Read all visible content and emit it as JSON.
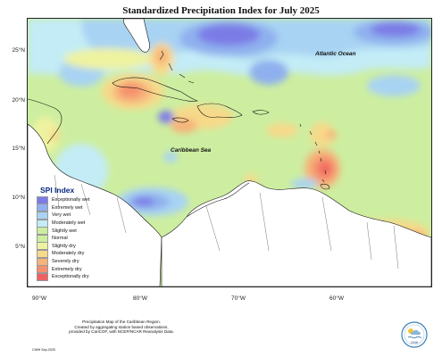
{
  "title": "Standardized Precipitation Index for July 2025",
  "latitude_labels": [
    "25°N",
    "20°N",
    "15°N",
    "10°N",
    "5°N"
  ],
  "longitude_labels": [
    "90°W",
    "80°W",
    "70°W",
    "60°W"
  ],
  "ocean_labels": {
    "atlantic": "Atlantic Ocean",
    "caribbean": "Caribbean Sea"
  },
  "legend": {
    "title": "SPI Index",
    "items": [
      {
        "label": "Exceptionally wet",
        "color": "#7b7be6"
      },
      {
        "label": "Extremely wet",
        "color": "#8fb0ee"
      },
      {
        "label": "Very wet",
        "color": "#a8d3f3"
      },
      {
        "label": "Moderately wet",
        "color": "#c3ecf6"
      },
      {
        "label": "Slightly wet",
        "color": "#cdeea0"
      },
      {
        "label": "Normal",
        "color": "#cdeea0"
      },
      {
        "label": "Slightly dry",
        "color": "#eef3a0"
      },
      {
        "label": "Moderately dry",
        "color": "#f7d98a"
      },
      {
        "label": "Severely dry",
        "color": "#f6b37a"
      },
      {
        "label": "Extremely dry",
        "color": "#f58f6d"
      },
      {
        "label": "Exceptionally dry",
        "color": "#ef6161"
      }
    ]
  },
  "credit": {
    "line1": "Precipitation Map of the Caribbean Region.",
    "line2": "Created by aggregating station based observations,",
    "line3": "provided by CariCOF, with NCEP/NCAR Reanalysis Data.",
    "date": "CIMH Sep-2025"
  },
  "logo_text": "CIMH"
}
